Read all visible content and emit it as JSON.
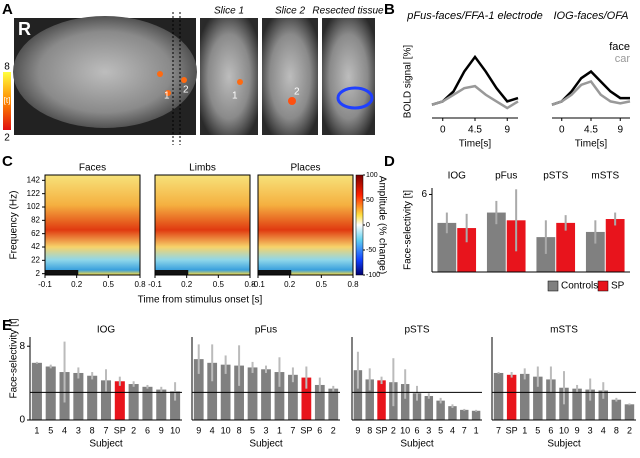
{
  "panel_labels": [
    "A",
    "B",
    "C",
    "D",
    "E"
  ],
  "panel_a": {
    "hemisphere": "R",
    "slice_titles": [
      "Slice 1",
      "Slice 2",
      "Resected tissue"
    ],
    "electrode_labels": [
      "1",
      "2",
      "1",
      "2"
    ],
    "colorbar": {
      "label": "[t]",
      "ticks": [
        8,
        2
      ]
    }
  },
  "spectrograms": {
    "titles": [
      "Faces",
      "Limbs",
      "Places"
    ],
    "ylabel": "Frequency (Hz)",
    "ylim": [
      0,
      150
    ],
    "yticks": [
      142,
      122,
      102,
      82,
      62,
      42,
      22,
      2
    ],
    "xlim": [
      -0.1,
      0.8
    ],
    "xticks": [
      -0.1,
      0.2,
      0.5,
      0.8
    ],
    "xlabel": "Time from stimulus onset [s]",
    "colorbar": {
      "label": "Amplitude (% change)",
      "lim": [
        -100,
        100
      ],
      "ticks": [
        100,
        50,
        0,
        -50,
        -100
      ]
    }
  },
  "chart_data": [
    {
      "type": "line",
      "title": "pFus-faces/FFA-1 electrode",
      "ylabel": "BOLD signal [%]",
      "xlabel": "Time[s]",
      "x": [
        -1.5,
        0,
        1.5,
        3,
        4.5,
        6,
        7.5,
        9,
        10.5
      ],
      "xlim": [
        -1.5,
        10.5
      ],
      "xticks": [
        0,
        4.5,
        9
      ],
      "ylim": [
        -0.2,
        0.9
      ],
      "series": [
        {
          "color": "#000000",
          "values": [
            0,
            0.05,
            0.2,
            0.5,
            0.72,
            0.5,
            0.25,
            0.05,
            0.1
          ]
        },
        {
          "color": "#999999",
          "values": [
            0,
            0.05,
            0.15,
            0.25,
            0.28,
            0.15,
            0.05,
            -0.05,
            0.05
          ]
        }
      ]
    },
    {
      "type": "line",
      "title": "IOG-faces/OFA",
      "xlabel": "Time[s]",
      "x": [
        -1.5,
        0,
        1.5,
        3,
        4.5,
        6,
        7.5,
        9,
        10.5
      ],
      "xlim": [
        -1.5,
        10.5
      ],
      "xticks": [
        0,
        4.5,
        9
      ],
      "ylim": [
        -0.2,
        0.9
      ],
      "legend": "upper right",
      "series": [
        {
          "name": "face",
          "color": "#000000",
          "values": [
            0,
            0.05,
            0.2,
            0.4,
            0.5,
            0.35,
            0.2,
            0.1,
            0.1
          ]
        },
        {
          "name": "car",
          "color": "#999999",
          "values": [
            0,
            0.05,
            0.15,
            0.3,
            0.35,
            0.15,
            0.05,
            0.02,
            0.05
          ]
        }
      ]
    },
    {
      "type": "bar",
      "ylabel": "Face-selectivity [t]",
      "categories": [
        "IOG",
        "pFus",
        "pSTS",
        "mSTS"
      ],
      "ylim": [
        0,
        6.5
      ],
      "yticks": [
        6
      ],
      "legend": "bottom",
      "error_color": "#aaaaaa",
      "series": [
        {
          "name": "Controls",
          "color": "#808080",
          "values": [
            3.8,
            4.6,
            2.7,
            3.1
          ],
          "errors": [
            0.8,
            0.9,
            1.3,
            0.9
          ]
        },
        {
          "name": "SP",
          "color": "#e8141c",
          "values": [
            3.4,
            4.0,
            3.8,
            4.1
          ],
          "errors": [
            1.1,
            2.4,
            0.6,
            0.5
          ]
        }
      ]
    },
    {
      "type": "bar",
      "title": "IOG",
      "ylabel": "Face-selectivity [t]",
      "xlabel": "Subject",
      "categories": [
        "1",
        "5",
        "4",
        "3",
        "8",
        "7",
        "SP",
        "2",
        "6",
        "9",
        "10"
      ],
      "values": [
        6.2,
        5.8,
        5.2,
        5.1,
        4.8,
        4.3,
        4.2,
        3.9,
        3.6,
        3.3,
        3.1
      ],
      "errors": [
        0.1,
        0.2,
        3.3,
        0.6,
        0.4,
        1.2,
        0.5,
        0.3,
        0.2,
        0.3,
        1.0
      ],
      "bar_colors": [
        "#808080",
        "#808080",
        "#808080",
        "#808080",
        "#808080",
        "#808080",
        "#e8141c",
        "#808080",
        "#808080",
        "#808080",
        "#808080"
      ],
      "error_color": "#bbbbbb",
      "threshold": 3,
      "ylim": [
        0,
        9
      ],
      "yticks": [
        0,
        8
      ]
    },
    {
      "type": "bar",
      "title": "pFus",
      "xlabel": "Subject",
      "categories": [
        "9",
        "4",
        "10",
        "8",
        "5",
        "3",
        "1",
        "7",
        "SP",
        "6",
        "2"
      ],
      "values": [
        6.6,
        6.2,
        6.0,
        5.9,
        5.7,
        5.5,
        5.2,
        4.9,
        4.6,
        3.8,
        3.4
      ],
      "errors": [
        1.6,
        2.0,
        1.0,
        2.2,
        0.6,
        0.4,
        1.6,
        0.8,
        1.2,
        0.8,
        0.3
      ],
      "bar_colors": [
        "#808080",
        "#808080",
        "#808080",
        "#808080",
        "#808080",
        "#808080",
        "#808080",
        "#808080",
        "#e8141c",
        "#808080",
        "#808080"
      ],
      "error_color": "#bbbbbb",
      "threshold": 3,
      "ylim": [
        0,
        9
      ]
    },
    {
      "type": "bar",
      "title": "pSTS",
      "xlabel": "Subject",
      "categories": [
        "9",
        "8",
        "SP",
        "2",
        "10",
        "6",
        "3",
        "5",
        "4",
        "7",
        "1"
      ],
      "values": [
        5.4,
        4.4,
        4.3,
        4.1,
        3.9,
        2.9,
        2.6,
        2.1,
        1.5,
        1.1,
        1.0
      ],
      "errors": [
        2.0,
        1.2,
        0.4,
        2.6,
        1.6,
        0.8,
        0.3,
        0.3,
        0.2,
        0.1,
        0.1
      ],
      "bar_colors": [
        "#808080",
        "#808080",
        "#e8141c",
        "#808080",
        "#808080",
        "#808080",
        "#808080",
        "#808080",
        "#808080",
        "#808080",
        "#808080"
      ],
      "error_color": "#bbbbbb",
      "threshold": 3,
      "ylim": [
        0,
        9
      ]
    },
    {
      "type": "bar",
      "title": "mSTS",
      "xlabel": "Subject",
      "categories": [
        "7",
        "SP",
        "1",
        "5",
        "6",
        "10",
        "9",
        "3",
        "4",
        "8",
        "2"
      ],
      "values": [
        5.1,
        4.9,
        5.0,
        4.7,
        4.4,
        3.5,
        3.4,
        3.3,
        3.2,
        2.2,
        1.7
      ],
      "errors": [
        0.1,
        0.3,
        0.6,
        1.1,
        1.4,
        1.8,
        0.4,
        1.2,
        0.9,
        0.2,
        0.1
      ],
      "bar_colors": [
        "#808080",
        "#e8141c",
        "#808080",
        "#808080",
        "#808080",
        "#808080",
        "#808080",
        "#808080",
        "#808080",
        "#808080",
        "#808080"
      ],
      "error_color": "#bbbbbb",
      "threshold": 3,
      "ylim": [
        0,
        9
      ]
    }
  ]
}
